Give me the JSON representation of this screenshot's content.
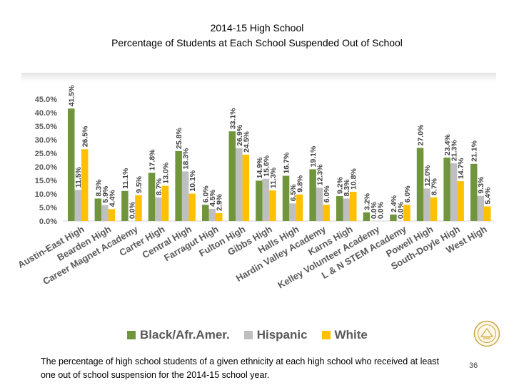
{
  "title_line1": "2014-15 High School",
  "title_line2": "Percentage of Students at Each School Suspended Out of School",
  "caption": "The percentage of high school students of a given ethnicity at each high school who received at least one out of school suspension for the 2014-15 school year.",
  "page_number": "36",
  "seal_icon": "school-district-seal-icon",
  "colors": {
    "black": "#70953c",
    "hispanic": "#bfbfbf",
    "white": "#ffc000"
  },
  "chart_data": {
    "type": "bar",
    "title": "",
    "ylim": [
      0,
      45
    ],
    "y_ticks": [
      "0.0%",
      "5.0%",
      "10.0%",
      "15.0%",
      "20.0%",
      "25.0%",
      "30.0%",
      "35.0%",
      "40.0%",
      "45.0%"
    ],
    "grid": false,
    "legend": "bottom",
    "categories": [
      "Austin-East High",
      "Bearden High",
      "Career Magnet Academy",
      "Carter High",
      "Central High",
      "Farragut High",
      "Fulton High",
      "Gibbs High",
      "Halls High",
      "Hardin Valley Academy",
      "Karns High",
      "Kelley Volunteer Academy",
      "L & N STEM Academy",
      "Powell High",
      "South-Doyle High",
      "West High"
    ],
    "series": [
      {
        "name": "Black/Afr.Amer.",
        "values": [
          41.5,
          8.3,
          11.1,
          17.8,
          25.8,
          6.0,
          33.1,
          14.9,
          16.7,
          19.1,
          9.2,
          3.2,
          2.4,
          27.0,
          23.4,
          21.1
        ],
        "labels": [
          "41.5%",
          "8.3%",
          "11.1%",
          "17.8%",
          "25.8%",
          "6.0%",
          "33.1%",
          "14.9%",
          "16.7%",
          "19.1%",
          "9.2%",
          "3.2%",
          "2.4%",
          "27.0%",
          "23.4%",
          "21.1%"
        ]
      },
      {
        "name": "Hispanic",
        "values": [
          11.5,
          5.9,
          0.0,
          8.7,
          18.3,
          4.5,
          26.9,
          15.6,
          6.5,
          12.3,
          8.3,
          0.0,
          0.0,
          12.0,
          21.3,
          9.3
        ],
        "labels": [
          "11.5%",
          "5.9%",
          "0.0%",
          "8.7%",
          "18.3%",
          "4.5%",
          "26.9%",
          "15.6%",
          "6.5%",
          "12.3%",
          "8.3%",
          "0.0%",
          "0.0%",
          "12.0%",
          "21.3%",
          "9.3%"
        ]
      },
      {
        "name": "White",
        "values": [
          26.5,
          4.4,
          9.5,
          13.0,
          10.1,
          2.9,
          24.5,
          11.3,
          9.8,
          6.0,
          10.8,
          0.0,
          6.0,
          8.7,
          14.7,
          5.4
        ],
        "labels": [
          "26.5%",
          "4.4%",
          "9.5%",
          "13.0%",
          "10.1%",
          "2.9%",
          "24.5%",
          "11.3%",
          "9.8%",
          "6.0%",
          "10.8%",
          "0.0%",
          "6.0%",
          "8.7%",
          "14.7%",
          "5.4%"
        ]
      }
    ]
  }
}
